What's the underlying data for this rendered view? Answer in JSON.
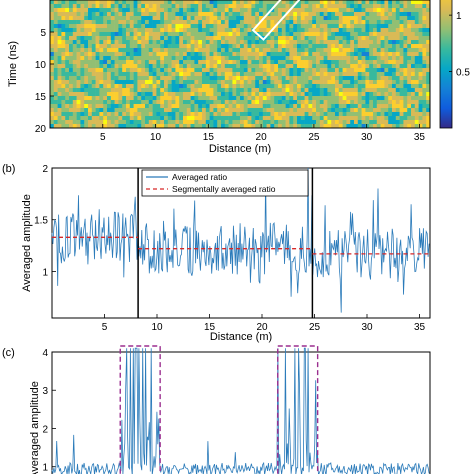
{
  "chart_data": [
    {
      "panel_label": "",
      "type": "heatmap",
      "xlabel": "Distance (m)",
      "ylabel": "Time (ns)",
      "xticks": [
        5,
        10,
        15,
        20,
        25,
        30,
        35
      ],
      "yticks": [
        5,
        10,
        15,
        20
      ],
      "xlim": [
        0,
        36
      ],
      "ylim_visible": [
        0,
        20
      ],
      "colorbar": {
        "ticks": [
          0.5,
          1
        ],
        "range": [
          0,
          1.4
        ],
        "colors": [
          "#352a87",
          "#0f5cdd",
          "#1481d6",
          "#06a7c6",
          "#38b99e",
          "#92bf73",
          "#d9ba56",
          "#fcce2e",
          "#f9fb0e"
        ]
      },
      "annotation": "white box marker near 20-25 m, 0-2 ns"
    },
    {
      "panel_label": "(b)",
      "type": "line",
      "xlabel": "Distance (m)",
      "ylabel": "Averaged amplitude",
      "xticks": [
        5,
        10,
        15,
        20,
        25,
        30,
        35
      ],
      "yticks": [
        1,
        1.5,
        2
      ],
      "xlim": [
        0,
        36
      ],
      "ylim": [
        0.55,
        2
      ],
      "series": [
        {
          "name": "Averaged ratio",
          "color": "#2b7bba",
          "style": "solid"
        },
        {
          "name": "Segmentally averaged ratio",
          "color": "#d62728",
          "style": "dashed",
          "segments": [
            {
              "x": [
                0,
                8.2
              ],
              "y": 1.33
            },
            {
              "x": [
                8.2,
                24.8
              ],
              "y": 1.22
            },
            {
              "x": [
                24.8,
                36
              ],
              "y": 1.17
            }
          ]
        }
      ],
      "boundaries": [
        8.2,
        24.8
      ],
      "legend_position": "top"
    },
    {
      "panel_label": "(c)",
      "type": "line",
      "xlabel": "",
      "ylabel": "Averaged amplitude",
      "yticks": [
        1,
        2,
        3,
        4
      ],
      "xlim": [
        0,
        36
      ],
      "ylim": [
        0.6,
        4
      ],
      "series": [
        {
          "name": "",
          "color": "#2b7bba",
          "style": "solid"
        }
      ],
      "highlight_boxes": [
        {
          "x": [
            6.5,
            10.3
          ]
        },
        {
          "x": [
            21.5,
            25.3
          ]
        }
      ]
    }
  ]
}
